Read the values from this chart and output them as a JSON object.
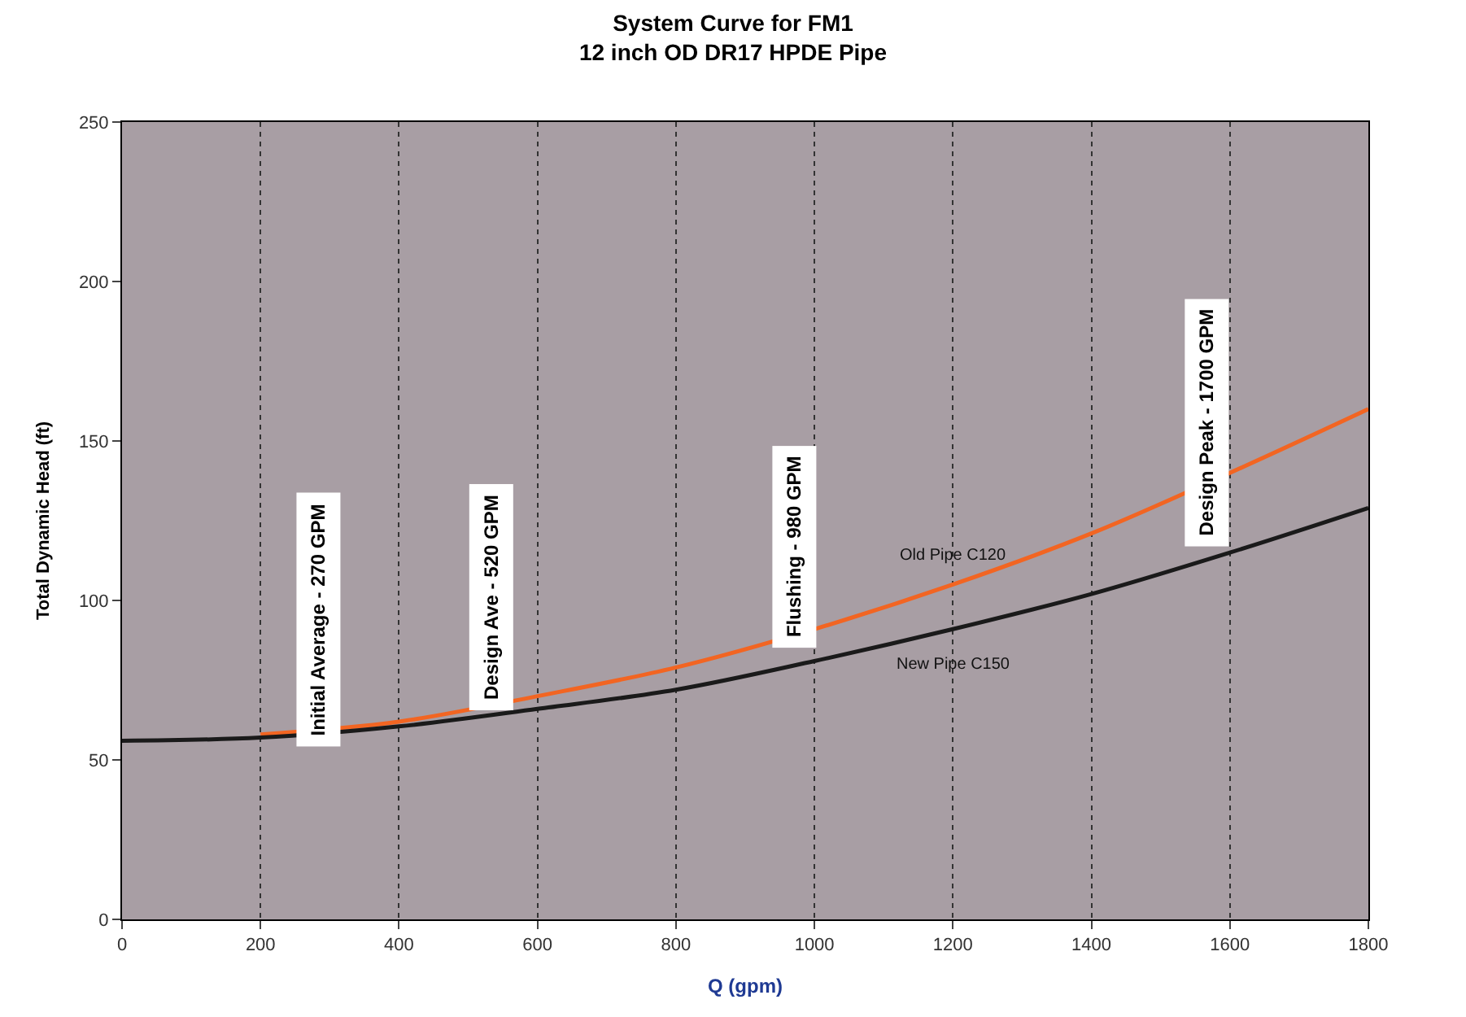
{
  "chart_data": {
    "type": "line",
    "title": "System Curve for FM1\n12 inch OD DR17 HPDE Pipe",
    "xlabel": "Q (gpm)",
    "ylabel": "Total Dynamic Head (ft)",
    "x": [
      0,
      200,
      400,
      600,
      800,
      1000,
      1200,
      1400,
      1600,
      1800
    ],
    "series": [
      {
        "name": "Old Pipe C120",
        "color": "#f26522",
        "x": [
          200,
          400,
          600,
          800,
          1000,
          1200,
          1400,
          1600,
          1800
        ],
        "values": [
          58,
          62,
          70,
          79,
          91,
          105,
          121,
          140,
          160
        ]
      },
      {
        "name": "New Pipe C150",
        "color": "#1a1a1a",
        "values": [
          56,
          57,
          60.5,
          66,
          72,
          81,
          91,
          102,
          115,
          129
        ]
      }
    ],
    "xlim": [
      0,
      1800
    ],
    "xticks": [
      0,
      200,
      400,
      600,
      800,
      1000,
      1200,
      1400,
      1600,
      1800
    ],
    "ylim": [
      0,
      250
    ],
    "yticks": [
      0,
      50,
      100,
      150,
      200,
      250
    ],
    "grid": "x",
    "legend": false,
    "marker": "none",
    "line_style": "solid",
    "annotations": [
      "Initial Average - 270 GPM",
      "Design Ave - 520 GPM",
      "Flushing - 980 GPM",
      "Design Peak - 1700 GPM"
    ]
  }
}
